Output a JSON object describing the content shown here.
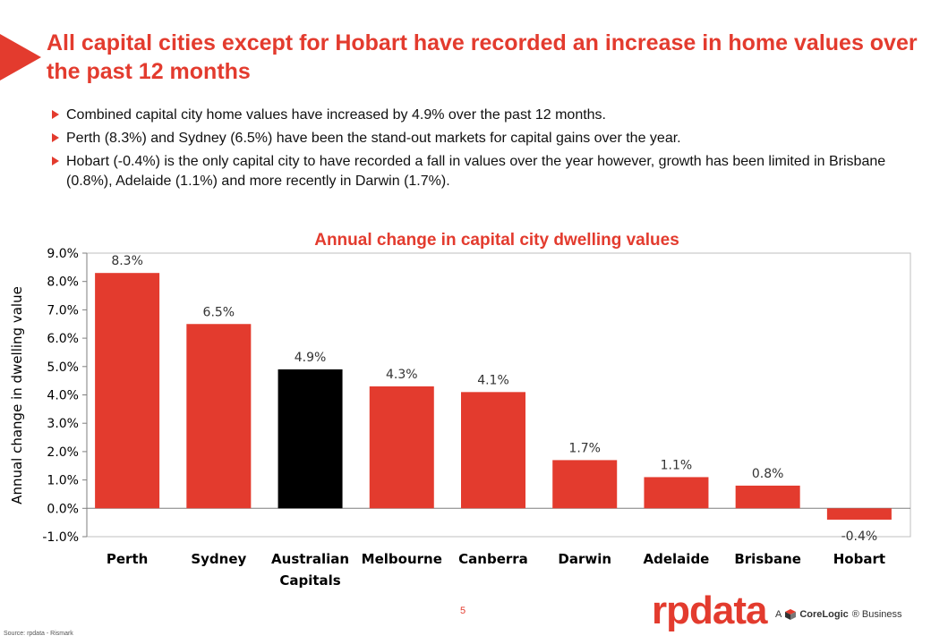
{
  "slide": {
    "title": "All capital cities except for Hobart have recorded an increase in home values over the past 12 months",
    "bullets": [
      "Combined capital city home values have increased by 4.9% over the past 12 months.",
      "Perth (8.3%) and Sydney (6.5%) have been the stand-out markets for capital gains over the year.",
      "Hobart (-0.4%) is the only capital city to have recorded a fall in values over the year however, growth has been limited in Brisbane (0.8%), Adelaide (1.1%) and more recently in Darwin (1.7%)."
    ],
    "page_number": "5",
    "source": "Source: rpdata - Rismark",
    "logo_text": "rpdata",
    "tagline_a": "A",
    "tagline_brand": "CoreLogic",
    "tagline_rest": "® Business",
    "accent_color": "#e33b2e"
  },
  "chart_data": {
    "type": "bar",
    "title": "Annual change in capital city dwelling values",
    "xlabel": "",
    "ylabel": "Annual change in dwelling value",
    "ylim": [
      -1.0,
      9.0
    ],
    "yticks": [
      -1.0,
      0.0,
      1.0,
      2.0,
      3.0,
      4.0,
      5.0,
      6.0,
      7.0,
      8.0,
      9.0
    ],
    "ytick_labels": [
      "-1.0%",
      "0.0%",
      "1.0%",
      "2.0%",
      "3.0%",
      "4.0%",
      "5.0%",
      "6.0%",
      "7.0%",
      "8.0%",
      "9.0%"
    ],
    "categories": [
      "Perth",
      "Sydney",
      "Australian Capitals",
      "Melbourne",
      "Canberra",
      "Darwin",
      "Adelaide",
      "Brisbane",
      "Hobart"
    ],
    "values": [
      8.3,
      6.5,
      4.9,
      4.3,
      4.1,
      1.7,
      1.1,
      0.8,
      -0.4
    ],
    "data_labels": [
      "8.3%",
      "6.5%",
      "4.9%",
      "4.3%",
      "4.1%",
      "1.7%",
      "1.1%",
      "0.8%",
      "-0.4%"
    ],
    "bar_colors": [
      "#e33b2e",
      "#e33b2e",
      "#000000",
      "#e33b2e",
      "#e33b2e",
      "#e33b2e",
      "#e33b2e",
      "#e33b2e",
      "#e33b2e"
    ],
    "grid": false,
    "legend": "none"
  }
}
